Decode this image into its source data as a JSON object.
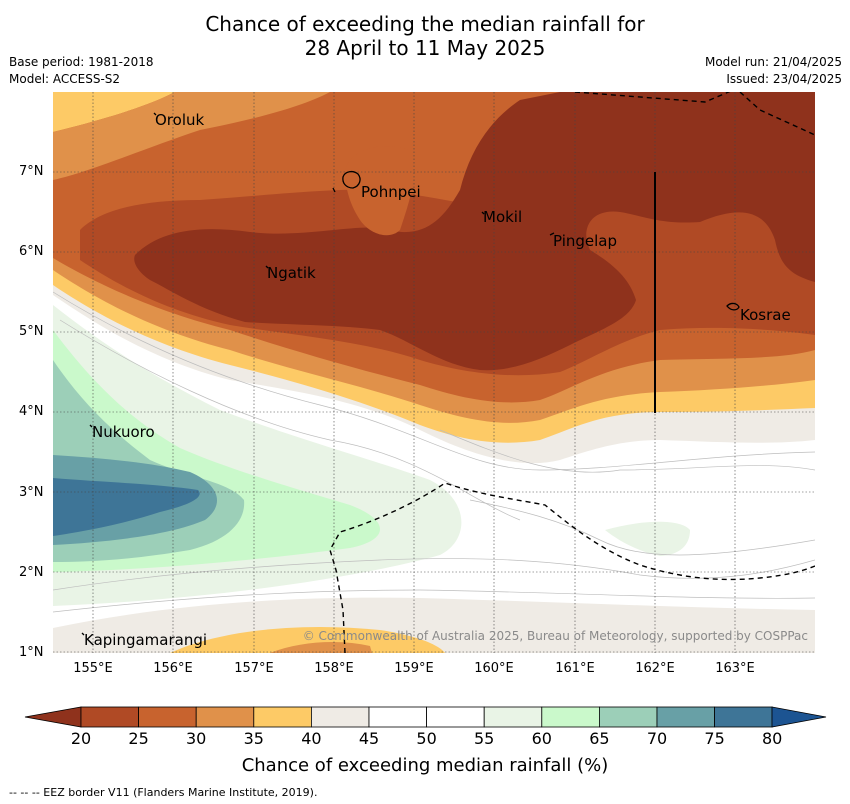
{
  "title_line1": "Chance of exceeding the median rainfall for",
  "title_line2": "28 April to 11 May 2025",
  "base_period": "Base period: 1981-2018",
  "model": "Model: ACCESS-S2",
  "model_run": "Model run: 21/04/2025",
  "issued": "Issued: 23/04/2025",
  "places": {
    "oroluk": "Oroluk",
    "pohnpei": "Pohnpei",
    "mokil": "Mokil",
    "pingelap": "Pingelap",
    "ngatik": "Ngatik",
    "kosrae": "Kosrae",
    "nukuoro": "Nukuoro",
    "kapingamarangi": "Kapingamarangi"
  },
  "lat_ticks": [
    "7°N",
    "6°N",
    "5°N",
    "4°N",
    "3°N",
    "2°N",
    "1°N"
  ],
  "lon_ticks": [
    "155°E",
    "156°E",
    "157°E",
    "158°E",
    "159°E",
    "160°E",
    "161°E",
    "162°E",
    "163°E"
  ],
  "colorbar": {
    "ticks": [
      "20",
      "25",
      "30",
      "35",
      "40",
      "45",
      "50",
      "55",
      "60",
      "65",
      "70",
      "75",
      "80"
    ],
    "colors": [
      "#8f321c",
      "#b04a25",
      "#c8632e",
      "#e0914a",
      "#fdca66",
      "#efebe5",
      "#ffffff",
      "#ffffff",
      "#e9f4e6",
      "#caf9cb",
      "#9ccfb8",
      "#68a0a6",
      "#3e7597",
      "#1c5492"
    ],
    "title": "Chance of exceeding median rainfall (%)"
  },
  "copyright": "© Commonwealth of Australia 2025, Bureau of Meteorology, supported by COSPPac",
  "footnote": "-- -- -- EEZ border V11 (Flanders Marine Institute, 2019)."
}
